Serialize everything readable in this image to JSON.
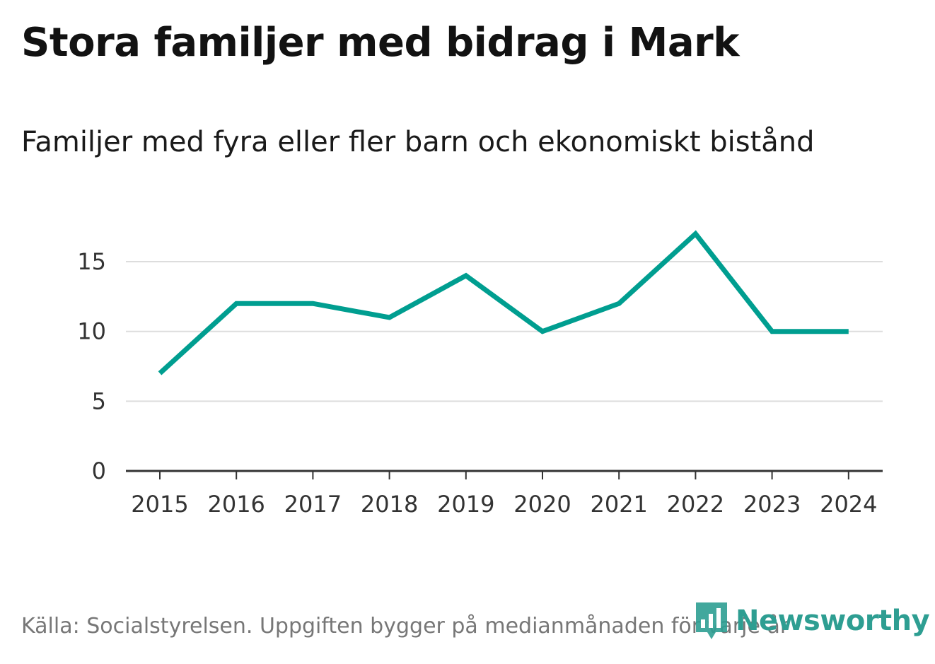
{
  "header": {
    "title": "Stora familjer med bidrag i Mark",
    "subtitle": "Familjer med fyra eller fler barn och ekonomiskt bistånd"
  },
  "footer": {
    "source": "Källa: Socialstyrelsen. Uppgiften bygger på medianmånaden för varje år"
  },
  "brand": {
    "name": "Newsworthy",
    "logo_icon": "newsworthy-logo-icon",
    "color": "#2e9e92"
  },
  "chart_data": {
    "type": "line",
    "title": "Stora familjer med bidrag i Mark",
    "subtitle": "Familjer med fyra eller fler barn och ekonomiskt bistånd",
    "xlabel": "",
    "ylabel": "",
    "categories": [
      "2015",
      "2016",
      "2017",
      "2018",
      "2019",
      "2020",
      "2021",
      "2022",
      "2023",
      "2024"
    ],
    "series": [
      {
        "name": "Familjer med fyra eller fler barn och ekonomiskt bistånd",
        "values": [
          7,
          12,
          12,
          11,
          14,
          10,
          12,
          17,
          10,
          10
        ],
        "color": "#009e90"
      }
    ],
    "ylim": [
      0,
      18
    ],
    "yticks": [
      0,
      5,
      10,
      15
    ],
    "grid": true,
    "legend": "none"
  }
}
